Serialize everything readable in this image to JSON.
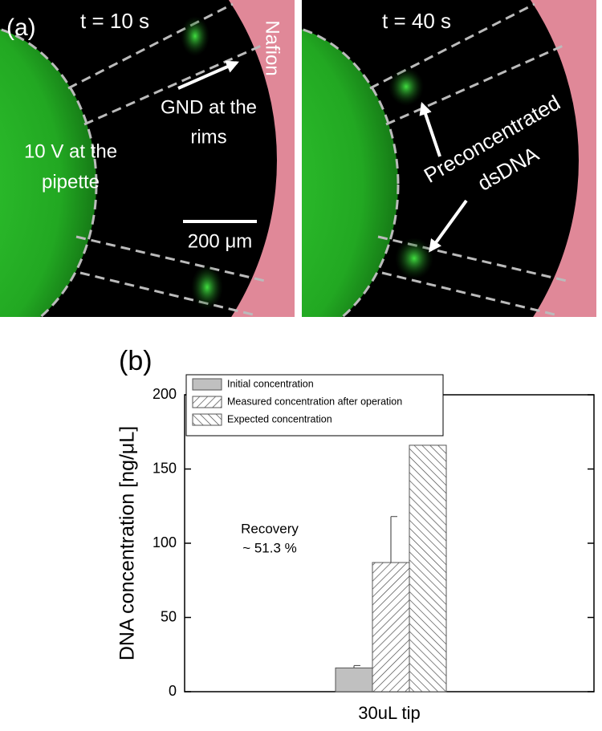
{
  "panel_a": {
    "label": "(a)",
    "left": {
      "time": "t = 10 s",
      "electrode": "Nafion",
      "ground": [
        "GND at the",
        "rims"
      ],
      "voltage": [
        "10 V at the",
        "pipette"
      ],
      "scale": "200 μm"
    },
    "right": {
      "time": "t = 40 s",
      "note": [
        "Preconcentrated",
        "dsDNA"
      ]
    }
  },
  "chart_data": {
    "type": "bar",
    "panel_label": "(b)",
    "y_label": "DNA concentration [ng/μL]",
    "categories": [
      "30uL tip"
    ],
    "series": [
      {
        "name": "Initial concentration",
        "color": "#c0c0c0",
        "hatch": "none",
        "values": [
          16
        ],
        "errors": [
          1.6
        ]
      },
      {
        "name": "Measured concentration after operation",
        "color": "#404040",
        "hatch": "forward",
        "values": [
          87
        ],
        "errors": [
          31
        ]
      },
      {
        "name": "Expected concentration",
        "color": "#404040",
        "hatch": "backward",
        "values": [
          166
        ]
      }
    ],
    "annotation": [
      "Recovery",
      "~ 51.3 %"
    ],
    "ylim": [
      0,
      200
    ],
    "yticks": [
      0,
      50,
      100,
      150,
      200
    ]
  }
}
